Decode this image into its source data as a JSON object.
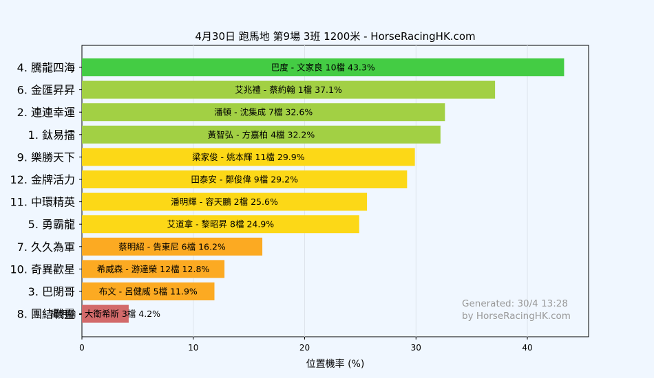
{
  "chart_data": {
    "type": "bar",
    "orientation": "horizontal",
    "title": "4月30日  跑馬地  第9場  3班  1200米 - HorseRacingHK.com",
    "xlabel": "位置機率 (%)",
    "ylabel": "",
    "xlim": [
      0,
      45.5
    ],
    "xticks": [
      0,
      10,
      20,
      30,
      40
    ],
    "grid": true,
    "categories": [
      "4. 騰龍四海",
      "6. 金匯昇昇",
      "2. 連連幸運",
      "1. 鈦易擂",
      "9. 樂勝天下",
      "12. 金牌活力",
      "11. 中環精英",
      "5. 勇霸龍",
      "7. 久久為軍",
      "10. 奇異歡星",
      "3. 巴閉哥",
      "8. 團結戰靈"
    ],
    "values": [
      43.3,
      37.1,
      32.6,
      32.2,
      29.9,
      29.2,
      25.6,
      24.9,
      16.2,
      12.8,
      11.9,
      4.2
    ],
    "labels": [
      "巴度 - 文家良 10檔  43.3%",
      "艾兆禮 - 蔡約翰 1檔  37.1%",
      "潘頓 - 沈集成 7檔  32.6%",
      "黃智弘 - 方嘉柏 4檔  32.2%",
      "梁家俊 - 姚本輝 11檔  29.9%",
      "田泰安 - 鄭俊偉 9檔  29.2%",
      "潘明輝 - 容天鵬 2檔  25.6%",
      "艾道拿 - 黎昭昇 8檔  24.9%",
      "蔡明紹 - 告東尼 6檔  16.2%",
      "希威森 - 游達榮 12檔  12.8%",
      "布文 - 呂健威 5檔  11.9%",
      "楊明綸 - 大衛希斯 3檔  4.2%"
    ],
    "colors": [
      "#44cc44",
      "#a2d044",
      "#a2d044",
      "#a2d044",
      "#fcd817",
      "#fcd817",
      "#fcd817",
      "#fcd817",
      "#fcaa22",
      "#fcaa22",
      "#fcaa22",
      "#d26a6a"
    ]
  },
  "watermark": {
    "line1": "Generated: 30/4 13:28",
    "line2": "by HorseRacingHK.com"
  }
}
